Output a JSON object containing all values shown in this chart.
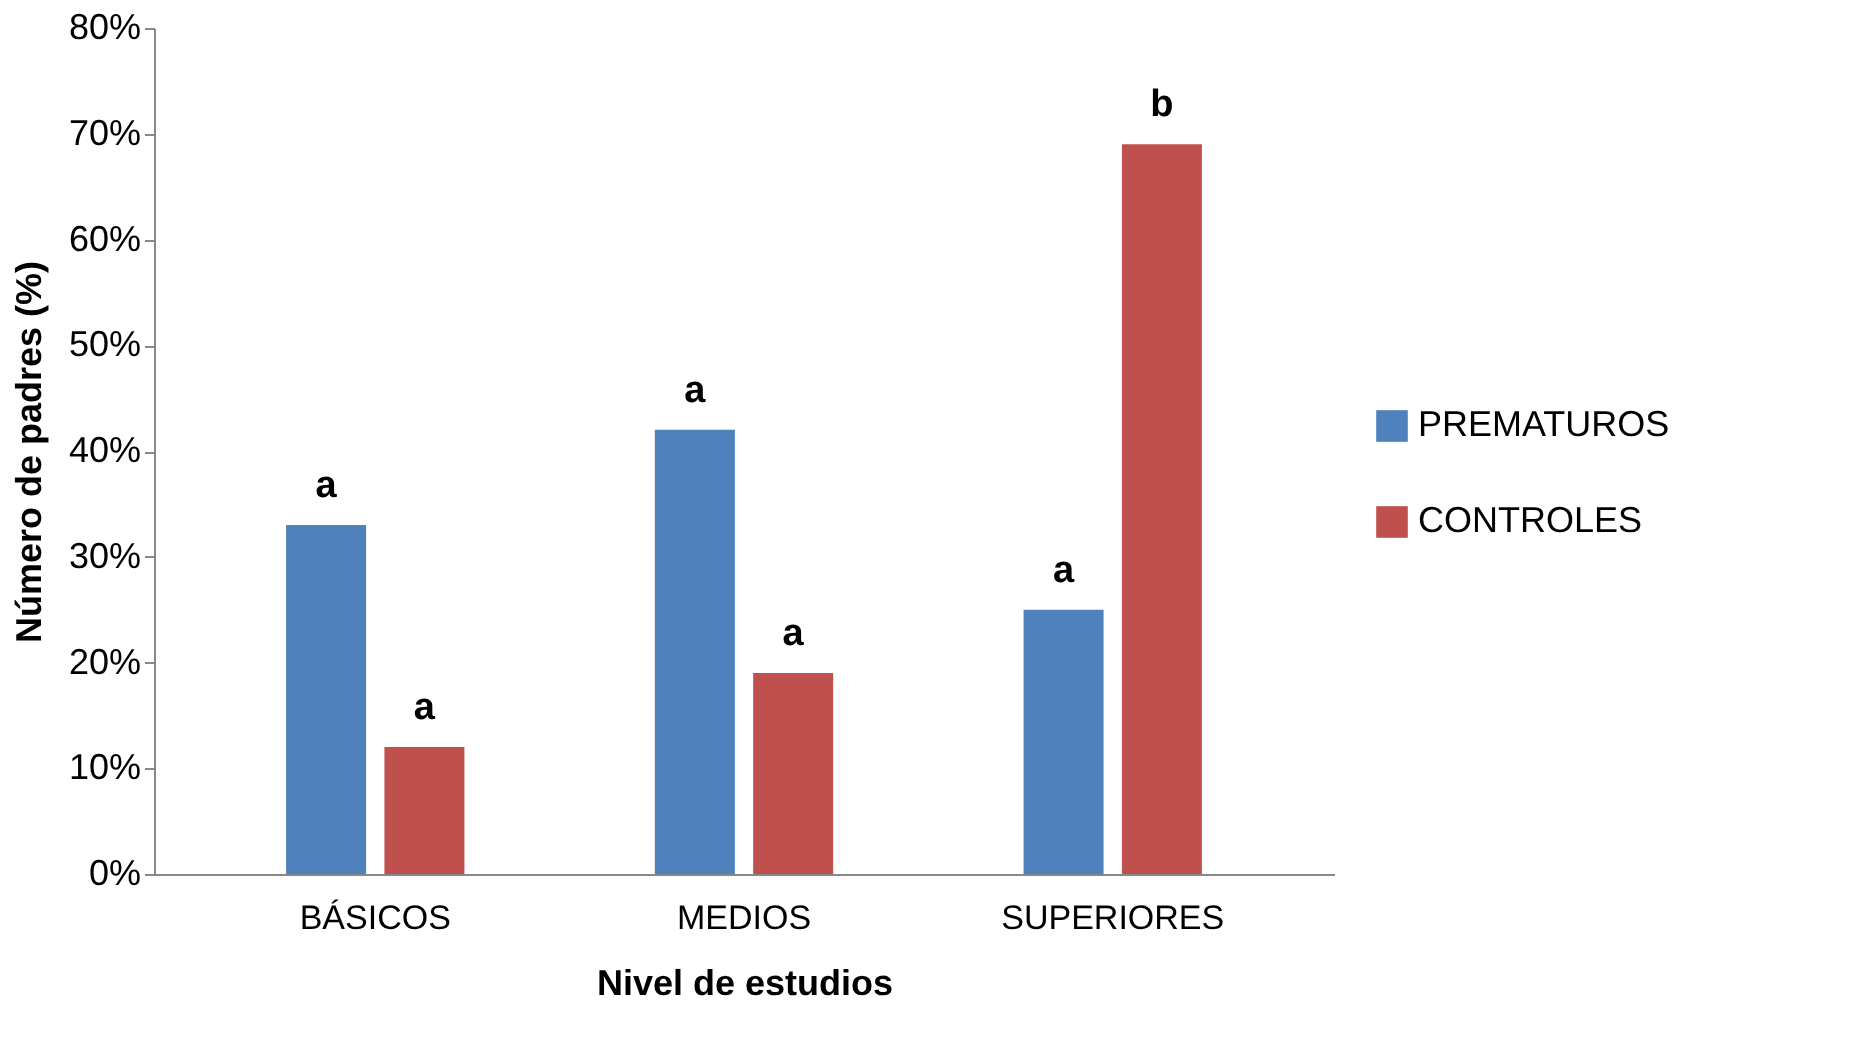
{
  "chart_data": {
    "type": "bar",
    "xlabel": "Nivel de estudios",
    "ylabel": "Número de padres (%)",
    "categories": [
      "BÁSICOS",
      "MEDIOS",
      "SUPERIORES"
    ],
    "series": [
      {
        "name": "PREMATUROS",
        "color": "#4f81bd",
        "values": [
          33,
          42,
          25
        ]
      },
      {
        "name": "CONTROLES",
        "color": "#c0504d",
        "values": [
          12,
          19,
          69
        ]
      }
    ],
    "ylim": [
      0,
      80
    ],
    "yticks": [
      {
        "value": 0,
        "label": "0%"
      },
      {
        "value": 10,
        "label": "10%"
      },
      {
        "value": 20,
        "label": "20%"
      },
      {
        "value": 30,
        "label": "30%"
      },
      {
        "value": 40,
        "label": "40%"
      },
      {
        "value": 50,
        "label": "50%"
      },
      {
        "value": 60,
        "label": "60%"
      },
      {
        "value": 70,
        "label": "70%"
      },
      {
        "value": 80,
        "label": "80%"
      }
    ],
    "annotations": [
      {
        "text": "a",
        "x": "BÁSICOS",
        "y": 33
      },
      {
        "text": "a",
        "x": "BÁSICOS",
        "y": 12
      },
      {
        "text": "a",
        "x": "MEDIOS",
        "y": 42
      },
      {
        "text": "a",
        "x": "MEDIOS",
        "y": 19
      },
      {
        "text": "a",
        "x": "SUPERIORES",
        "y": 25
      },
      {
        "text": "b",
        "x": "SUPERIORES",
        "y": 69
      }
    ],
    "grid": false,
    "legend": "right"
  }
}
